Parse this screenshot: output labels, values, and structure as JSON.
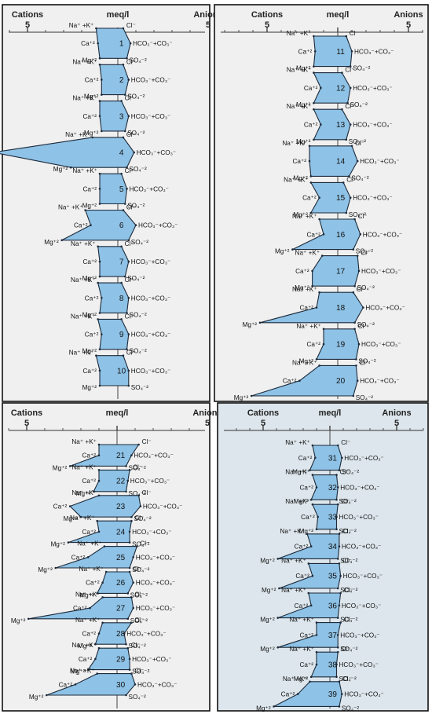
{
  "colors": {
    "fill": "#8ec2e6",
    "stroke": "#1d2a3a",
    "panel_bg": "#f0f0f0",
    "panel_bg_last": "#dde6ec",
    "axis": "#333333"
  },
  "ion_labels": {
    "na_k": "Na⁺ +K⁺",
    "ca": "Ca⁺²",
    "mg": "Mg⁺²",
    "cl": "Cl⁻",
    "hco3_co3": "HCO₃⁻+CO₃⁻",
    "so4": "SO₄⁻²"
  },
  "chart_data": [
    {
      "type": "stiff",
      "header": {
        "left": "Cations",
        "center": "meq/l",
        "right": "Anions"
      },
      "scale_ticks": [
        "5",
        "5"
      ],
      "samples": [
        {
          "id": "1",
          "na_k": 1.2,
          "ca": 1.1,
          "mg": 1.0,
          "cl": 0.3,
          "hco3_co3": 0.7,
          "so4": 0.5
        },
        {
          "id": "2",
          "na_k": 1.0,
          "ca": 0.9,
          "mg": 0.9,
          "cl": 0.3,
          "hco3_co3": 0.6,
          "so4": 0.4
        },
        {
          "id": "3",
          "na_k": 1.0,
          "ca": 1.0,
          "mg": 0.9,
          "cl": 0.2,
          "hco3_co3": 0.6,
          "so4": 0.4
        },
        {
          "id": "4",
          "na_k": 1.4,
          "ca": 6.9,
          "mg": 2.6,
          "cl": 0.3,
          "hco3_co3": 0.9,
          "so4": 0.5
        },
        {
          "id": "5",
          "na_k": 1.0,
          "ca": 1.0,
          "mg": 1.0,
          "cl": 0.2,
          "hco3_co3": 0.5,
          "so4": 0.4
        },
        {
          "id": "6",
          "na_k": 1.8,
          "ca": 1.5,
          "mg": 3.1,
          "cl": 0.3,
          "hco3_co3": 1.0,
          "so4": 0.6
        },
        {
          "id": "7",
          "na_k": 1.1,
          "ca": 1.0,
          "mg": 1.0,
          "cl": 0.2,
          "hco3_co3": 0.6,
          "so4": 0.4
        },
        {
          "id": "8",
          "na_k": 1.1,
          "ca": 0.9,
          "mg": 1.0,
          "cl": 0.2,
          "hco3_co3": 0.6,
          "so4": 0.5
        },
        {
          "id": "9",
          "na_k": 1.1,
          "ca": 0.9,
          "mg": 1.0,
          "cl": 0.2,
          "hco3_co3": 0.6,
          "so4": 0.5
        },
        {
          "id": "10",
          "na_k": 1.2,
          "ca": 1.0,
          "mg": 1.0,
          "cl": 0.3,
          "hco3_co3": 0.6,
          "so4": 0.6
        }
      ]
    },
    {
      "type": "stiff",
      "header": {
        "left": "Cations",
        "center": "meq/l",
        "right": "Anions"
      },
      "scale_ticks": [
        "5",
        "5"
      ],
      "samples": [
        {
          "id": "11",
          "na_k": 1.7,
          "ca": 1.6,
          "mg": 1.7,
          "cl": 0.6,
          "hco3_co3": 1.0,
          "so4": 0.9
        },
        {
          "id": "12",
          "na_k": 1.7,
          "ca": 1.2,
          "mg": 1.7,
          "cl": 0.3,
          "hco3_co3": 0.9,
          "so4": 0.7
        },
        {
          "id": "13",
          "na_k": 1.7,
          "ca": 1.2,
          "mg": 1.7,
          "cl": 0.3,
          "hco3_co3": 0.9,
          "so4": 0.6
        },
        {
          "id": "14",
          "na_k": 2.0,
          "ca": 2.0,
          "mg": 1.9,
          "cl": 1.0,
          "hco3_co3": 1.4,
          "so4": 0.8
        },
        {
          "id": "15",
          "na_k": 1.9,
          "ca": 1.3,
          "mg": 1.9,
          "cl": 0.4,
          "hco3_co3": 0.9,
          "so4": 0.6
        },
        {
          "id": "16",
          "na_k": 1.3,
          "ca": 1.0,
          "mg": 3.2,
          "cl": 1.2,
          "hco3_co3": 1.6,
          "so4": 1.1
        },
        {
          "id": "17",
          "na_k": 1.1,
          "ca": 1.8,
          "mg": 1.8,
          "cl": 1.4,
          "hco3_co3": 1.5,
          "so4": 1.2
        },
        {
          "id": "18",
          "na_k": 1.3,
          "ca": 1.5,
          "mg": 5.5,
          "cl": 1.1,
          "hco3_co3": 1.8,
          "so4": 1.2
        },
        {
          "id": "19",
          "na_k": 1.0,
          "ca": 1.0,
          "mg": 1.5,
          "cl": 1.2,
          "hco3_co3": 1.5,
          "so4": 1.3
        },
        {
          "id": "20",
          "na_k": 1.3,
          "ca": 2.7,
          "mg": 6.1,
          "cl": 1.3,
          "hco3_co3": 1.4,
          "so4": 1.1
        }
      ]
    },
    {
      "type": "stiff",
      "header": {
        "left": "Cations",
        "center": "meq/l",
        "right": "Anions"
      },
      "scale_ticks": [
        "5",
        "5"
      ],
      "samples": [
        {
          "id": "21",
          "na_k": 1.0,
          "ca": 1.0,
          "mg": 2.6,
          "cl": 1.2,
          "hco3_co3": 0.8,
          "so4": 0.5
        },
        {
          "id": "22",
          "na_k": 1.0,
          "ca": 1.0,
          "mg": 1.3,
          "cl": 0.7,
          "hco3_co3": 0.6,
          "so4": 0.5
        },
        {
          "id": "23",
          "na_k": 1.0,
          "ca": 2.6,
          "mg": 2.0,
          "cl": 1.2,
          "hco3_co3": 1.3,
          "so4": 0.8
        },
        {
          "id": "24",
          "na_k": 1.1,
          "ca": 1.0,
          "mg": 2.7,
          "cl": 0.8,
          "hco3_co3": 0.7,
          "so4": 0.7
        },
        {
          "id": "25",
          "na_k": 0.7,
          "ca": 1.6,
          "mg": 3.4,
          "cl": 1.1,
          "hco3_co3": 0.9,
          "so4": 0.7
        },
        {
          "id": "26",
          "na_k": 0.6,
          "ca": 0.8,
          "mg": 1.1,
          "cl": 0.7,
          "hco3_co3": 0.9,
          "so4": 0.6
        },
        {
          "id": "27",
          "na_k": 0.8,
          "ca": 1.5,
          "mg": 4.9,
          "cl": 0.8,
          "hco3_co3": 0.9,
          "so4": 0.6
        },
        {
          "id": "28",
          "na_k": 0.8,
          "ca": 1.0,
          "mg": 1.2,
          "cl": 0.8,
          "hco3_co3": 0.4,
          "so4": 0.5
        },
        {
          "id": "29",
          "na_k": 1.0,
          "ca": 1.2,
          "mg": 1.6,
          "cl": 0.6,
          "hco3_co3": 0.7,
          "so4": 0.7
        },
        {
          "id": "30",
          "na_k": 1.1,
          "ca": 2.3,
          "mg": 3.9,
          "cl": 0.8,
          "hco3_co3": 1.0,
          "so4": 0.5
        }
      ]
    },
    {
      "type": "stiff",
      "header": {
        "left": "Cations",
        "center": "meq/l",
        "right": "Anions"
      },
      "scale_ticks": [
        "5",
        "5"
      ],
      "samples": [
        {
          "id": "31",
          "na_k": 1.3,
          "ca": 1.1,
          "mg": 1.5,
          "cl": 0.6,
          "hco3_co3": 0.9,
          "so4": 0.7
        },
        {
          "id": "32",
          "na_k": 1.3,
          "ca": 1.0,
          "mg": 1.4,
          "cl": 0.5,
          "hco3_co3": 0.6,
          "so4": 0.5
        },
        {
          "id": "33",
          "na_k": 1.3,
          "ca": 0.9,
          "mg": 1.0,
          "cl": 0.6,
          "hco3_co3": 0.5,
          "so4": 0.5
        },
        {
          "id": "34",
          "na_k": 1.7,
          "ca": 1.4,
          "mg": 3.9,
          "cl": 0.7,
          "hco3_co3": 0.7,
          "so4": 0.6
        },
        {
          "id": "35",
          "na_k": 1.6,
          "ca": 1.3,
          "mg": 3.8,
          "cl": 0.7,
          "hco3_co3": 0.8,
          "so4": 0.6
        },
        {
          "id": "36",
          "na_k": 1.6,
          "ca": 1.4,
          "mg": 3.9,
          "cl": 0.8,
          "hco3_co3": 0.7,
          "so4": 0.6
        },
        {
          "id": "37",
          "na_k": 1.0,
          "ca": 1.0,
          "mg": 3.9,
          "cl": 0.8,
          "hco3_co3": 0.6,
          "so4": 0.6
        },
        {
          "id": "38",
          "na_k": 1.0,
          "ca": 1.0,
          "mg": 1.4,
          "cl": 0.6,
          "hco3_co3": 0.5,
          "so4": 0.5
        },
        {
          "id": "39",
          "na_k": 1.5,
          "ca": 2.4,
          "mg": 4.2,
          "cl": 0.7,
          "hco3_co3": 0.9,
          "so4": 0.7
        }
      ]
    }
  ]
}
